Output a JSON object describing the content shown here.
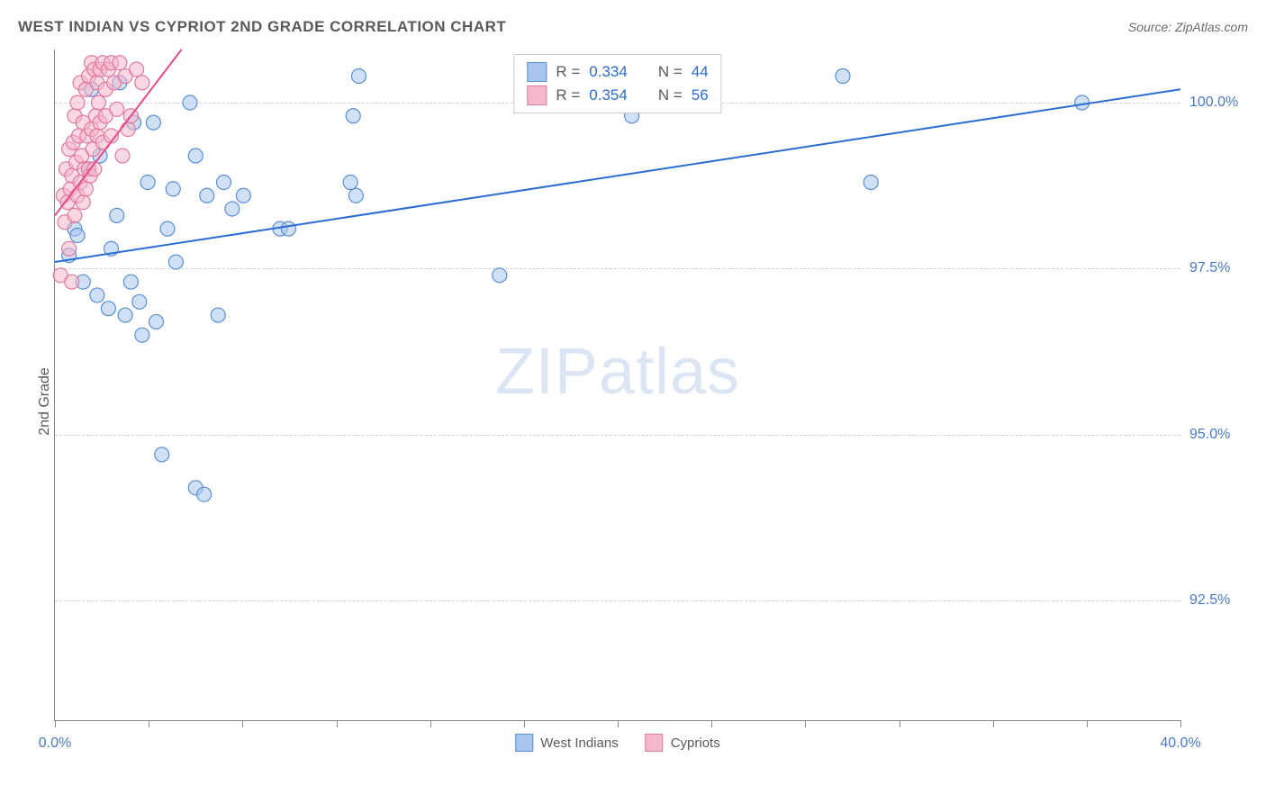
{
  "header": {
    "title": "WEST INDIAN VS CYPRIOT 2ND GRADE CORRELATION CHART",
    "source": "Source: ZipAtlas.com"
  },
  "watermark": {
    "left": "ZIP",
    "right": "atlas"
  },
  "chart": {
    "type": "scatter",
    "ylabel": "2nd Grade",
    "background_color": "#ffffff",
    "grid_color": "#d0d0d0",
    "xlim": [
      0,
      40
    ],
    "ylim": [
      90.7,
      100.8
    ],
    "xtick_positions": [
      0,
      3.33,
      6.67,
      10,
      13.33,
      16.67,
      20,
      23.33,
      26.67,
      30,
      33.33,
      36.67,
      40
    ],
    "xtick_labels": {
      "first": "0.0%",
      "last": "40.0%"
    },
    "ytick_positions": [
      92.5,
      95.0,
      97.5,
      100.0
    ],
    "ytick_labels": [
      "92.5%",
      "95.0%",
      "97.5%",
      "100.0%"
    ],
    "marker_radius": 8,
    "marker_opacity": 0.55,
    "line_width": 2,
    "series": [
      {
        "name": "West Indians",
        "color_fill": "#a8c6f0",
        "color_stroke": "#5a8fd6",
        "line_color": "#2b6cd4",
        "R": "0.334",
        "N": "44",
        "trend": {
          "x1": 0,
          "y1": 97.6,
          "x2": 40,
          "y2": 100.2
        },
        "points": [
          {
            "x": 0.5,
            "y": 97.7
          },
          {
            "x": 0.7,
            "y": 98.1
          },
          {
            "x": 0.8,
            "y": 98.0
          },
          {
            "x": 1.0,
            "y": 97.3
          },
          {
            "x": 1.2,
            "y": 99.0
          },
          {
            "x": 1.3,
            "y": 100.2
          },
          {
            "x": 1.5,
            "y": 97.1
          },
          {
            "x": 1.6,
            "y": 99.2
          },
          {
            "x": 1.9,
            "y": 96.9
          },
          {
            "x": 2.0,
            "y": 97.8
          },
          {
            "x": 2.2,
            "y": 98.3
          },
          {
            "x": 2.3,
            "y": 100.3
          },
          {
            "x": 2.5,
            "y": 96.8
          },
          {
            "x": 2.7,
            "y": 97.3
          },
          {
            "x": 2.8,
            "y": 99.7
          },
          {
            "x": 3.0,
            "y": 97.0
          },
          {
            "x": 3.1,
            "y": 96.5
          },
          {
            "x": 3.3,
            "y": 98.8
          },
          {
            "x": 3.5,
            "y": 99.7
          },
          {
            "x": 3.6,
            "y": 96.7
          },
          {
            "x": 3.8,
            "y": 94.7
          },
          {
            "x": 4.0,
            "y": 98.1
          },
          {
            "x": 4.2,
            "y": 98.7
          },
          {
            "x": 4.3,
            "y": 97.6
          },
          {
            "x": 4.8,
            "y": 100.0
          },
          {
            "x": 5.0,
            "y": 99.2
          },
          {
            "x": 5.0,
            "y": 94.2
          },
          {
            "x": 5.3,
            "y": 94.1
          },
          {
            "x": 5.4,
            "y": 98.6
          },
          {
            "x": 5.8,
            "y": 96.8
          },
          {
            "x": 6.0,
            "y": 98.8
          },
          {
            "x": 6.3,
            "y": 98.4
          },
          {
            "x": 6.7,
            "y": 98.6
          },
          {
            "x": 8.0,
            "y": 98.1
          },
          {
            "x": 8.3,
            "y": 98.1
          },
          {
            "x": 10.5,
            "y": 98.8
          },
          {
            "x": 10.6,
            "y": 99.8
          },
          {
            "x": 10.7,
            "y": 98.6
          },
          {
            "x": 10.8,
            "y": 100.4
          },
          {
            "x": 15.8,
            "y": 97.4
          },
          {
            "x": 20.5,
            "y": 99.8
          },
          {
            "x": 28.0,
            "y": 100.4
          },
          {
            "x": 29.0,
            "y": 98.8
          },
          {
            "x": 36.5,
            "y": 100.0
          }
        ]
      },
      {
        "name": "Cypriots",
        "color_fill": "#f5b8cb",
        "color_stroke": "#e07aa0",
        "line_color": "#e84b8a",
        "R": "0.354",
        "N": "56",
        "trend": {
          "x1": 0,
          "y1": 98.3,
          "x2": 4.5,
          "y2": 100.8
        },
        "points": [
          {
            "x": 0.2,
            "y": 97.4
          },
          {
            "x": 0.3,
            "y": 98.6
          },
          {
            "x": 0.35,
            "y": 98.2
          },
          {
            "x": 0.4,
            "y": 99.0
          },
          {
            "x": 0.45,
            "y": 98.5
          },
          {
            "x": 0.5,
            "y": 97.8
          },
          {
            "x": 0.5,
            "y": 99.3
          },
          {
            "x": 0.55,
            "y": 98.7
          },
          {
            "x": 0.6,
            "y": 98.9
          },
          {
            "x": 0.6,
            "y": 97.3
          },
          {
            "x": 0.65,
            "y": 99.4
          },
          {
            "x": 0.7,
            "y": 98.3
          },
          {
            "x": 0.7,
            "y": 99.8
          },
          {
            "x": 0.75,
            "y": 99.1
          },
          {
            "x": 0.8,
            "y": 98.6
          },
          {
            "x": 0.8,
            "y": 100.0
          },
          {
            "x": 0.85,
            "y": 99.5
          },
          {
            "x": 0.9,
            "y": 98.8
          },
          {
            "x": 0.9,
            "y": 100.3
          },
          {
            "x": 0.95,
            "y": 99.2
          },
          {
            "x": 1.0,
            "y": 98.5
          },
          {
            "x": 1.0,
            "y": 99.7
          },
          {
            "x": 1.05,
            "y": 99.0
          },
          {
            "x": 1.1,
            "y": 100.2
          },
          {
            "x": 1.1,
            "y": 98.7
          },
          {
            "x": 1.15,
            "y": 99.5
          },
          {
            "x": 1.2,
            "y": 99.0
          },
          {
            "x": 1.2,
            "y": 100.4
          },
          {
            "x": 1.25,
            "y": 98.9
          },
          {
            "x": 1.3,
            "y": 99.6
          },
          {
            "x": 1.3,
            "y": 100.6
          },
          {
            "x": 1.35,
            "y": 99.3
          },
          {
            "x": 1.4,
            "y": 100.5
          },
          {
            "x": 1.4,
            "y": 99.0
          },
          {
            "x": 1.45,
            "y": 99.8
          },
          {
            "x": 1.5,
            "y": 100.3
          },
          {
            "x": 1.5,
            "y": 99.5
          },
          {
            "x": 1.55,
            "y": 100.0
          },
          {
            "x": 1.6,
            "y": 99.7
          },
          {
            "x": 1.6,
            "y": 100.5
          },
          {
            "x": 1.7,
            "y": 99.4
          },
          {
            "x": 1.7,
            "y": 100.6
          },
          {
            "x": 1.8,
            "y": 100.2
          },
          {
            "x": 1.8,
            "y": 99.8
          },
          {
            "x": 1.9,
            "y": 100.5
          },
          {
            "x": 2.0,
            "y": 99.5
          },
          {
            "x": 2.0,
            "y": 100.6
          },
          {
            "x": 2.1,
            "y": 100.3
          },
          {
            "x": 2.2,
            "y": 99.9
          },
          {
            "x": 2.3,
            "y": 100.6
          },
          {
            "x": 2.4,
            "y": 99.2
          },
          {
            "x": 2.5,
            "y": 100.4
          },
          {
            "x": 2.6,
            "y": 99.6
          },
          {
            "x": 2.7,
            "y": 99.8
          },
          {
            "x": 2.9,
            "y": 100.5
          },
          {
            "x": 3.1,
            "y": 100.3
          }
        ]
      }
    ]
  }
}
